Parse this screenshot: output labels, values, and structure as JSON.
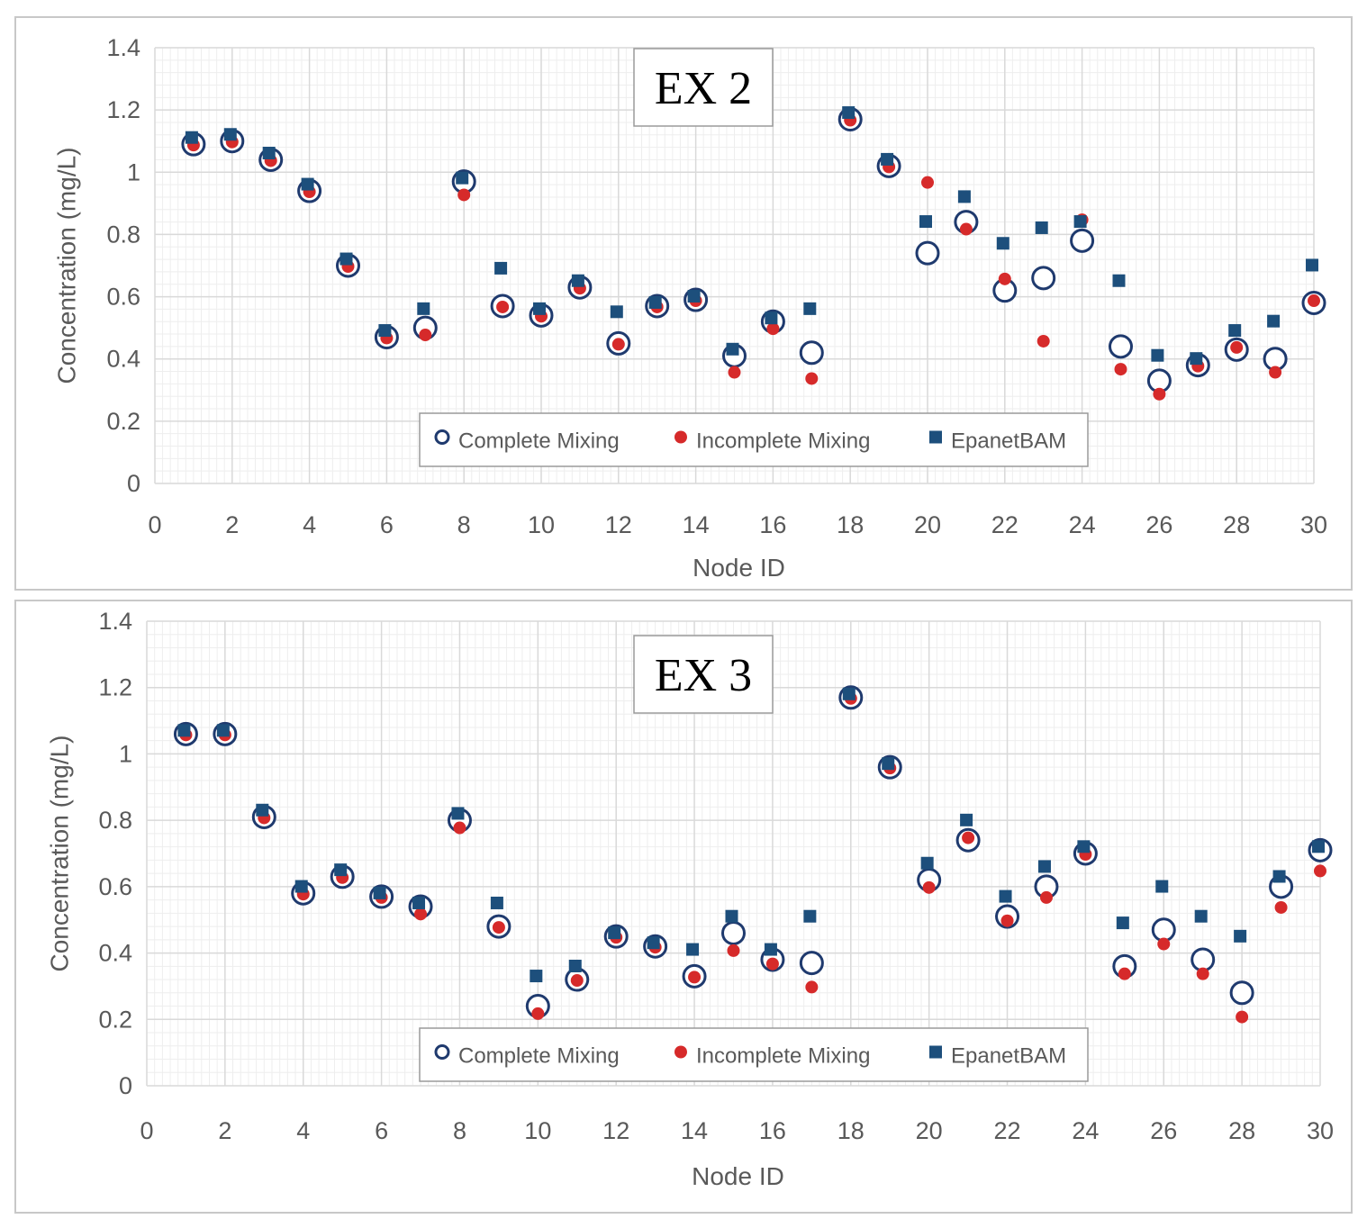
{
  "colors": {
    "complete": "#1f3a6e",
    "incomplete": "#d62a2a",
    "epanet": "#1d4f7c",
    "grid_major": "#d9d9d9",
    "grid_minor": "#eeeeee"
  },
  "chart_data": [
    {
      "type": "scatter",
      "title": "EX 2",
      "xlabel": "Node ID",
      "ylabel": "Concentration (mg/L)",
      "xlim": [
        0,
        30
      ],
      "ylim": [
        0,
        1.4
      ],
      "x_ticks": [
        "0",
        "2",
        "4",
        "6",
        "8",
        "10",
        "12",
        "14",
        "16",
        "18",
        "20",
        "22",
        "24",
        "26",
        "28",
        "30"
      ],
      "y_ticks": [
        "0",
        "0.2",
        "0.4",
        "0.6",
        "0.8",
        "1",
        "1.2",
        "1.4"
      ],
      "legend": [
        "Complete Mixing",
        "Incomplete Mixing",
        "EpanetBAM"
      ],
      "x": [
        1,
        2,
        3,
        4,
        5,
        6,
        7,
        8,
        9,
        10,
        11,
        12,
        13,
        14,
        15,
        16,
        17,
        18,
        19,
        20,
        21,
        22,
        23,
        24,
        25,
        26,
        27,
        28,
        29,
        30
      ],
      "series": [
        {
          "name": "Complete Mixing",
          "values": [
            1.09,
            1.1,
            1.04,
            0.94,
            0.7,
            0.47,
            0.5,
            0.97,
            0.57,
            0.54,
            0.63,
            0.45,
            0.57,
            0.59,
            0.41,
            0.52,
            0.42,
            1.17,
            1.02,
            0.74,
            0.84,
            0.62,
            0.66,
            0.78,
            0.44,
            0.33,
            0.38,
            0.43,
            0.4,
            0.58
          ]
        },
        {
          "name": "Incomplete Mixing",
          "values": [
            1.09,
            1.1,
            1.04,
            0.94,
            0.7,
            0.47,
            0.48,
            0.93,
            0.57,
            0.54,
            0.63,
            0.45,
            0.57,
            0.59,
            0.36,
            0.5,
            0.34,
            1.17,
            1.02,
            0.97,
            0.82,
            0.66,
            0.46,
            0.85,
            0.37,
            0.29,
            0.38,
            0.44,
            0.36,
            0.59
          ]
        },
        {
          "name": "EpanetBAM",
          "values": [
            1.1,
            1.11,
            1.05,
            0.95,
            0.71,
            0.48,
            0.55,
            0.97,
            0.68,
            0.55,
            0.64,
            0.54,
            0.57,
            0.59,
            0.42,
            0.52,
            0.55,
            1.18,
            1.03,
            0.83,
            0.91,
            0.76,
            0.81,
            0.83,
            0.64,
            0.4,
            0.39,
            0.48,
            0.51,
            0.69
          ]
        }
      ]
    },
    {
      "type": "scatter",
      "title": "EX 3",
      "xlabel": "Node ID",
      "ylabel": "Concentration (mg/L)",
      "xlim": [
        0,
        30
      ],
      "ylim": [
        0,
        1.4
      ],
      "x_ticks": [
        "0",
        "2",
        "4",
        "6",
        "8",
        "10",
        "12",
        "14",
        "16",
        "18",
        "20",
        "22",
        "24",
        "26",
        "28",
        "30"
      ],
      "y_ticks": [
        "0",
        "0.2",
        "0.4",
        "0.6",
        "0.8",
        "1",
        "1.2",
        "1.4"
      ],
      "legend": [
        "Complete Mixing",
        "Incomplete Mixing",
        "EpanetBAM"
      ],
      "x": [
        1,
        2,
        3,
        4,
        5,
        6,
        7,
        8,
        9,
        10,
        11,
        12,
        13,
        14,
        15,
        16,
        17,
        18,
        19,
        20,
        21,
        22,
        23,
        24,
        25,
        26,
        27,
        28,
        29,
        30
      ],
      "series": [
        {
          "name": "Complete Mixing",
          "values": [
            1.06,
            1.06,
            0.81,
            0.58,
            0.63,
            0.57,
            0.54,
            0.8,
            0.48,
            0.24,
            0.32,
            0.45,
            0.42,
            0.33,
            0.46,
            0.38,
            0.37,
            1.17,
            0.96,
            0.62,
            0.74,
            0.51,
            0.6,
            0.7,
            0.36,
            0.47,
            0.38,
            0.28,
            0.6,
            0.71
          ]
        },
        {
          "name": "Incomplete Mixing",
          "values": [
            1.06,
            1.06,
            0.81,
            0.58,
            0.63,
            0.57,
            0.52,
            0.78,
            0.48,
            0.22,
            0.32,
            0.45,
            0.42,
            0.33,
            0.41,
            0.37,
            0.3,
            1.17,
            0.96,
            0.6,
            0.75,
            0.5,
            0.57,
            0.7,
            0.34,
            0.43,
            0.34,
            0.21,
            0.54,
            0.65
          ]
        },
        {
          "name": "EpanetBAM",
          "values": [
            1.06,
            1.06,
            0.82,
            0.59,
            0.64,
            0.57,
            0.54,
            0.81,
            0.54,
            0.32,
            0.35,
            0.45,
            0.42,
            0.4,
            0.5,
            0.4,
            0.5,
            1.17,
            0.96,
            0.66,
            0.79,
            0.56,
            0.65,
            0.71,
            0.48,
            0.59,
            0.5,
            0.44,
            0.62,
            0.71
          ]
        }
      ]
    }
  ]
}
